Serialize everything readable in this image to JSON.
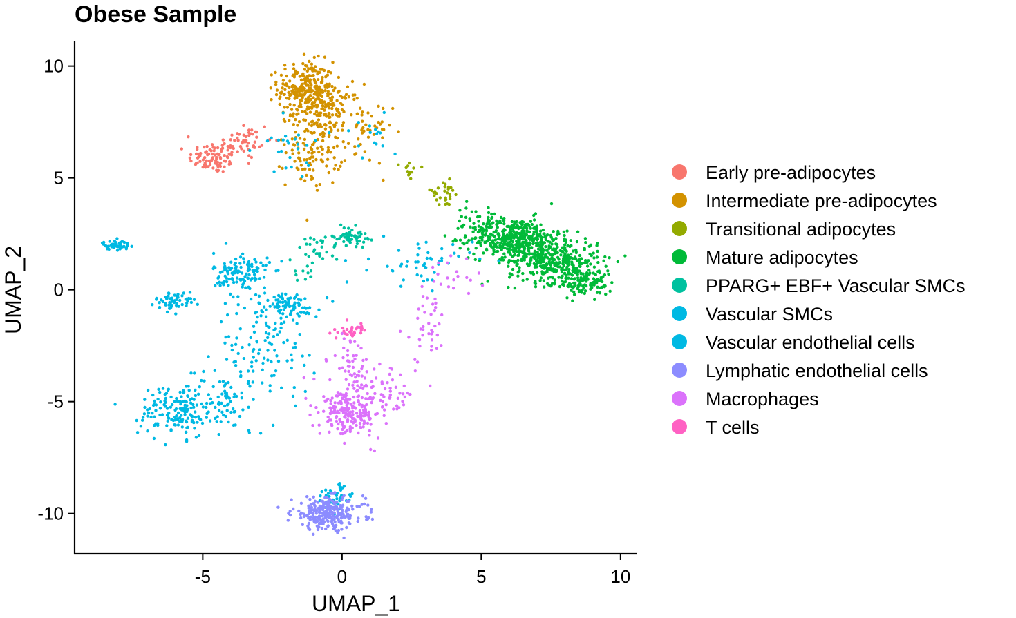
{
  "chart_data": {
    "type": "scatter",
    "title": "Obese Sample",
    "xlabel": "UMAP_1",
    "ylabel": "UMAP_2",
    "xlim": [
      -9.6,
      10.6
    ],
    "ylim": [
      -11.8,
      11.1
    ],
    "x_ticks": [
      -5,
      0,
      5,
      10
    ],
    "y_ticks": [
      -10,
      -5,
      0,
      5,
      10
    ],
    "x_tick_labels": [
      "-5",
      "0",
      "5",
      "10"
    ],
    "y_tick_labels": [
      "-10",
      "-5",
      "0",
      "5",
      "10"
    ],
    "grid": false,
    "legend_position": "right",
    "series": [
      {
        "name": "Early pre-adipocytes",
        "color": "#F8766D",
        "clusters": [
          {
            "cx": -4.6,
            "cy": 5.9,
            "sx": 0.45,
            "sy": 0.35,
            "n": 90
          },
          {
            "cx": -3.5,
            "cy": 6.6,
            "sx": 0.5,
            "sy": 0.5,
            "n": 50
          }
        ]
      },
      {
        "name": "Intermediate pre-adipocytes",
        "color": "#D39200",
        "clusters": [
          {
            "cx": -1.3,
            "cy": 9.0,
            "sx": 0.5,
            "sy": 0.6,
            "n": 260
          },
          {
            "cx": -0.5,
            "cy": 8.0,
            "sx": 0.6,
            "sy": 0.6,
            "n": 140
          },
          {
            "cx": -1.0,
            "cy": 6.2,
            "sx": 0.5,
            "sy": 0.8,
            "n": 110
          },
          {
            "cx": 0.8,
            "cy": 7.0,
            "sx": 0.5,
            "sy": 0.7,
            "n": 40
          }
        ]
      },
      {
        "name": "Transitional adipocytes",
        "color": "#93AA00",
        "clusters": [
          {
            "cx": 2.5,
            "cy": 5.3,
            "sx": 0.2,
            "sy": 0.25,
            "n": 12
          },
          {
            "cx": 3.6,
            "cy": 4.3,
            "sx": 0.35,
            "sy": 0.3,
            "n": 30
          }
        ]
      },
      {
        "name": "Mature adipocytes",
        "color": "#00BA38",
        "clusters": [
          {
            "cx": 6.2,
            "cy": 2.3,
            "sx": 0.8,
            "sy": 0.45,
            "n": 420
          },
          {
            "cx": 7.6,
            "cy": 1.3,
            "sx": 0.8,
            "sy": 0.5,
            "n": 380
          },
          {
            "cx": 8.8,
            "cy": 0.3,
            "sx": 0.45,
            "sy": 0.3,
            "n": 110
          },
          {
            "cx": 4.8,
            "cy": 3.0,
            "sx": 0.35,
            "sy": 0.4,
            "n": 40
          }
        ]
      },
      {
        "name": "PPARG+ EBF+ Vascular SMCs",
        "color": "#00C19F",
        "clusters": [
          {
            "cx": 0.3,
            "cy": 2.4,
            "sx": 0.3,
            "sy": 0.2,
            "n": 60
          },
          {
            "cx": -0.8,
            "cy": 1.8,
            "sx": 0.35,
            "sy": 0.3,
            "n": 25
          },
          {
            "cx": -1.5,
            "cy": 0.9,
            "sx": 0.3,
            "sy": 0.3,
            "n": 12
          }
        ]
      },
      {
        "name": "Vascular SMCs",
        "color": "#00B9E3",
        "clusters": [
          {
            "cx": -8.1,
            "cy": 2.0,
            "sx": 0.25,
            "sy": 0.1,
            "n": 45
          }
        ]
      },
      {
        "name": "Vascular endothelial cells",
        "color": "#00B9E3",
        "clusters": [
          {
            "cx": -3.6,
            "cy": 0.7,
            "sx": 0.5,
            "sy": 0.5,
            "n": 130
          },
          {
            "cx": -6.0,
            "cy": -0.5,
            "sx": 0.35,
            "sy": 0.2,
            "n": 60
          },
          {
            "cx": -2.0,
            "cy": -0.7,
            "sx": 0.6,
            "sy": 0.3,
            "n": 90
          },
          {
            "cx": -2.7,
            "cy": -2.6,
            "sx": 0.9,
            "sy": 1.0,
            "n": 100
          },
          {
            "cx": -5.9,
            "cy": -5.4,
            "sx": 0.7,
            "sy": 0.6,
            "n": 170
          },
          {
            "cx": -4.0,
            "cy": -5.0,
            "sx": 0.6,
            "sy": 0.8,
            "n": 60
          },
          {
            "cx": 2.9,
            "cy": 1.2,
            "sx": 0.9,
            "sy": 0.5,
            "n": 50
          },
          {
            "cx": -0.3,
            "cy": -9.3,
            "sx": 0.35,
            "sy": 0.3,
            "n": 50
          },
          {
            "cx": -1.8,
            "cy": 6.5,
            "sx": 0.6,
            "sy": 0.7,
            "n": 25
          },
          {
            "cx": 1.0,
            "cy": 6.7,
            "sx": 0.5,
            "sy": 0.6,
            "n": 15
          }
        ]
      },
      {
        "name": "Lymphatic endothelial cells",
        "color": "#8C8CFF",
        "clusters": [
          {
            "cx": -0.5,
            "cy": -10.0,
            "sx": 0.65,
            "sy": 0.35,
            "n": 260
          }
        ]
      },
      {
        "name": "Macrophages",
        "color": "#DB72FB",
        "clusters": [
          {
            "cx": 0.2,
            "cy": -5.6,
            "sx": 0.5,
            "sy": 0.45,
            "n": 170
          },
          {
            "cx": 1.0,
            "cy": -4.8,
            "sx": 0.8,
            "sy": 0.7,
            "n": 110
          },
          {
            "cx": 0.3,
            "cy": -3.2,
            "sx": 0.35,
            "sy": 0.6,
            "n": 40
          },
          {
            "cx": 3.0,
            "cy": -1.7,
            "sx": 0.4,
            "sy": 1.0,
            "n": 40
          },
          {
            "cx": 4.0,
            "cy": 0.4,
            "sx": 0.4,
            "sy": 0.4,
            "n": 20
          }
        ]
      },
      {
        "name": "T cells",
        "color": "#FF61C3",
        "clusters": [
          {
            "cx": 0.4,
            "cy": -1.8,
            "sx": 0.25,
            "sy": 0.15,
            "n": 30
          }
        ]
      }
    ]
  }
}
